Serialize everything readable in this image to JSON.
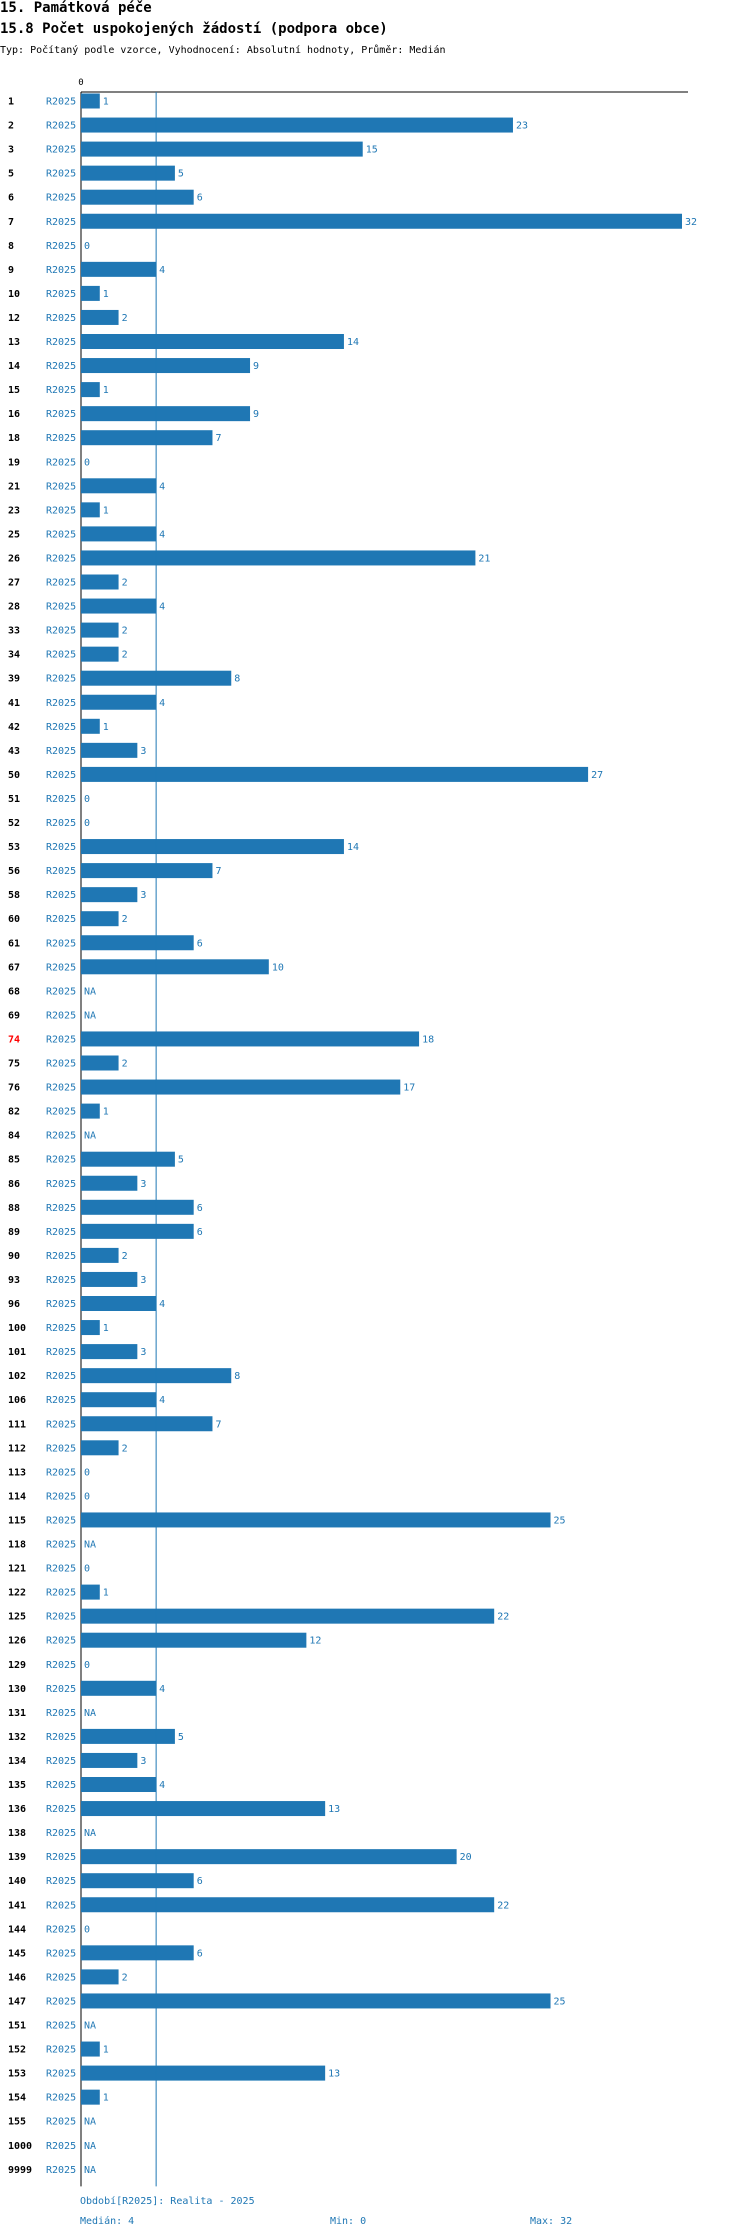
{
  "header": {
    "section": "15. Památková péče",
    "title": "15.8 Počet uspokojených žádostí (podpora obce)",
    "subtitle": "Typ: Počítaný podle vzorce, Vyhodnocení: Absolutní hodnoty, Průměr: Medián"
  },
  "colors": {
    "bar": "#1f77b4",
    "label": "#1f77b4",
    "highlight": "#ff0000"
  },
  "chart_data": {
    "type": "bar",
    "orientation": "horizontal",
    "series": [
      {
        "name": "R2025"
      }
    ],
    "x_tick_labels": [
      "0"
    ],
    "xlim": [
      0,
      32
    ],
    "highlight": "74",
    "median_line": 4,
    "rows": [
      {
        "id": "1",
        "series": "R2025",
        "value": 1,
        "label": "1"
      },
      {
        "id": "2",
        "series": "R2025",
        "value": 23,
        "label": "23"
      },
      {
        "id": "3",
        "series": "R2025",
        "value": 15,
        "label": "15"
      },
      {
        "id": "5",
        "series": "R2025",
        "value": 5,
        "label": "5"
      },
      {
        "id": "6",
        "series": "R2025",
        "value": 6,
        "label": "6"
      },
      {
        "id": "7",
        "series": "R2025",
        "value": 32,
        "label": "32"
      },
      {
        "id": "8",
        "series": "R2025",
        "value": 0,
        "label": "0"
      },
      {
        "id": "9",
        "series": "R2025",
        "value": 4,
        "label": "4"
      },
      {
        "id": "10",
        "series": "R2025",
        "value": 1,
        "label": "1"
      },
      {
        "id": "12",
        "series": "R2025",
        "value": 2,
        "label": "2"
      },
      {
        "id": "13",
        "series": "R2025",
        "value": 14,
        "label": "14"
      },
      {
        "id": "14",
        "series": "R2025",
        "value": 9,
        "label": "9"
      },
      {
        "id": "15",
        "series": "R2025",
        "value": 1,
        "label": "1"
      },
      {
        "id": "16",
        "series": "R2025",
        "value": 9,
        "label": "9"
      },
      {
        "id": "18",
        "series": "R2025",
        "value": 7,
        "label": "7"
      },
      {
        "id": "19",
        "series": "R2025",
        "value": 0,
        "label": "0"
      },
      {
        "id": "21",
        "series": "R2025",
        "value": 4,
        "label": "4"
      },
      {
        "id": "23",
        "series": "R2025",
        "value": 1,
        "label": "1"
      },
      {
        "id": "25",
        "series": "R2025",
        "value": 4,
        "label": "4"
      },
      {
        "id": "26",
        "series": "R2025",
        "value": 21,
        "label": "21"
      },
      {
        "id": "27",
        "series": "R2025",
        "value": 2,
        "label": "2"
      },
      {
        "id": "28",
        "series": "R2025",
        "value": 4,
        "label": "4"
      },
      {
        "id": "33",
        "series": "R2025",
        "value": 2,
        "label": "2"
      },
      {
        "id": "34",
        "series": "R2025",
        "value": 2,
        "label": "2"
      },
      {
        "id": "39",
        "series": "R2025",
        "value": 8,
        "label": "8"
      },
      {
        "id": "41",
        "series": "R2025",
        "value": 4,
        "label": "4"
      },
      {
        "id": "42",
        "series": "R2025",
        "value": 1,
        "label": "1"
      },
      {
        "id": "43",
        "series": "R2025",
        "value": 3,
        "label": "3"
      },
      {
        "id": "50",
        "series": "R2025",
        "value": 27,
        "label": "27"
      },
      {
        "id": "51",
        "series": "R2025",
        "value": 0,
        "label": "0"
      },
      {
        "id": "52",
        "series": "R2025",
        "value": 0,
        "label": "0"
      },
      {
        "id": "53",
        "series": "R2025",
        "value": 14,
        "label": "14"
      },
      {
        "id": "56",
        "series": "R2025",
        "value": 7,
        "label": "7"
      },
      {
        "id": "58",
        "series": "R2025",
        "value": 3,
        "label": "3"
      },
      {
        "id": "60",
        "series": "R2025",
        "value": 2,
        "label": "2"
      },
      {
        "id": "61",
        "series": "R2025",
        "value": 6,
        "label": "6"
      },
      {
        "id": "67",
        "series": "R2025",
        "value": 10,
        "label": "10"
      },
      {
        "id": "68",
        "series": "R2025",
        "value": null,
        "label": "NA"
      },
      {
        "id": "69",
        "series": "R2025",
        "value": null,
        "label": "NA"
      },
      {
        "id": "74",
        "series": "R2025",
        "value": 18,
        "label": "18"
      },
      {
        "id": "75",
        "series": "R2025",
        "value": 2,
        "label": "2"
      },
      {
        "id": "76",
        "series": "R2025",
        "value": 17,
        "label": "17"
      },
      {
        "id": "82",
        "series": "R2025",
        "value": 1,
        "label": "1"
      },
      {
        "id": "84",
        "series": "R2025",
        "value": null,
        "label": "NA"
      },
      {
        "id": "85",
        "series": "R2025",
        "value": 5,
        "label": "5"
      },
      {
        "id": "86",
        "series": "R2025",
        "value": 3,
        "label": "3"
      },
      {
        "id": "88",
        "series": "R2025",
        "value": 6,
        "label": "6"
      },
      {
        "id": "89",
        "series": "R2025",
        "value": 6,
        "label": "6"
      },
      {
        "id": "90",
        "series": "R2025",
        "value": 2,
        "label": "2"
      },
      {
        "id": "93",
        "series": "R2025",
        "value": 3,
        "label": "3"
      },
      {
        "id": "96",
        "series": "R2025",
        "value": 4,
        "label": "4"
      },
      {
        "id": "100",
        "series": "R2025",
        "value": 1,
        "label": "1"
      },
      {
        "id": "101",
        "series": "R2025",
        "value": 3,
        "label": "3"
      },
      {
        "id": "102",
        "series": "R2025",
        "value": 8,
        "label": "8"
      },
      {
        "id": "106",
        "series": "R2025",
        "value": 4,
        "label": "4"
      },
      {
        "id": "111",
        "series": "R2025",
        "value": 7,
        "label": "7"
      },
      {
        "id": "112",
        "series": "R2025",
        "value": 2,
        "label": "2"
      },
      {
        "id": "113",
        "series": "R2025",
        "value": 0,
        "label": "0"
      },
      {
        "id": "114",
        "series": "R2025",
        "value": 0,
        "label": "0"
      },
      {
        "id": "115",
        "series": "R2025",
        "value": 25,
        "label": "25"
      },
      {
        "id": "118",
        "series": "R2025",
        "value": null,
        "label": "NA"
      },
      {
        "id": "121",
        "series": "R2025",
        "value": 0,
        "label": "0"
      },
      {
        "id": "122",
        "series": "R2025",
        "value": 1,
        "label": "1"
      },
      {
        "id": "125",
        "series": "R2025",
        "value": 22,
        "label": "22"
      },
      {
        "id": "126",
        "series": "R2025",
        "value": 12,
        "label": "12"
      },
      {
        "id": "129",
        "series": "R2025",
        "value": 0,
        "label": "0"
      },
      {
        "id": "130",
        "series": "R2025",
        "value": 4,
        "label": "4"
      },
      {
        "id": "131",
        "series": "R2025",
        "value": null,
        "label": "NA"
      },
      {
        "id": "132",
        "series": "R2025",
        "value": 5,
        "label": "5"
      },
      {
        "id": "134",
        "series": "R2025",
        "value": 3,
        "label": "3"
      },
      {
        "id": "135",
        "series": "R2025",
        "value": 4,
        "label": "4"
      },
      {
        "id": "136",
        "series": "R2025",
        "value": 13,
        "label": "13"
      },
      {
        "id": "138",
        "series": "R2025",
        "value": null,
        "label": "NA"
      },
      {
        "id": "139",
        "series": "R2025",
        "value": 20,
        "label": "20"
      },
      {
        "id": "140",
        "series": "R2025",
        "value": 6,
        "label": "6"
      },
      {
        "id": "141",
        "series": "R2025",
        "value": 22,
        "label": "22"
      },
      {
        "id": "144",
        "series": "R2025",
        "value": 0,
        "label": "0"
      },
      {
        "id": "145",
        "series": "R2025",
        "value": 6,
        "label": "6"
      },
      {
        "id": "146",
        "series": "R2025",
        "value": 2,
        "label": "2"
      },
      {
        "id": "147",
        "series": "R2025",
        "value": 25,
        "label": "25"
      },
      {
        "id": "151",
        "series": "R2025",
        "value": null,
        "label": "NA"
      },
      {
        "id": "152",
        "series": "R2025",
        "value": 1,
        "label": "1"
      },
      {
        "id": "153",
        "series": "R2025",
        "value": 13,
        "label": "13"
      },
      {
        "id": "154",
        "series": "R2025",
        "value": 1,
        "label": "1"
      },
      {
        "id": "155",
        "series": "R2025",
        "value": null,
        "label": "NA"
      },
      {
        "id": "1000",
        "series": "R2025",
        "value": null,
        "label": "NA"
      },
      {
        "id": "9999",
        "series": "R2025",
        "value": null,
        "label": "NA"
      }
    ]
  },
  "footer": {
    "period": "Období[R2025]: Realita - 2025",
    "median": "Medián: 4",
    "min": "Min: 0",
    "max": "Max: 32"
  }
}
